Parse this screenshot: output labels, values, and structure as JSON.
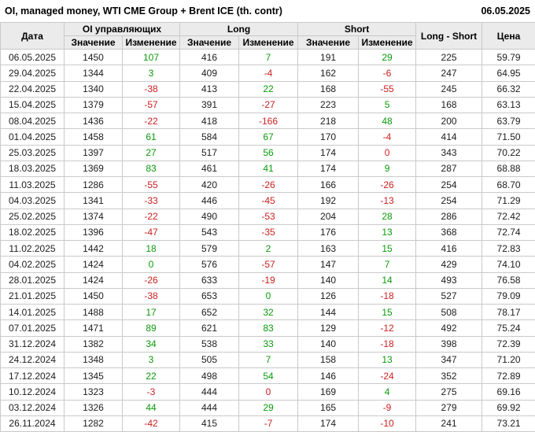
{
  "chart_data": {
    "type": "table",
    "title": "OI, managed money, WTI CME Group + Brent ICE (th. contr)",
    "report_date": "06.05.2025",
    "colors": {
      "positive_change": "#0b9b0b",
      "negative_change": "#cc2020",
      "header_background": "#ebebeb",
      "grid_border": "#c9c9c9"
    },
    "headers": {
      "date": "Дата",
      "oi_group": "OI управляющих",
      "long_group": "Long",
      "short_group": "Short",
      "value": "Значение",
      "change": "Изменение",
      "long_short": "Long - Short",
      "price": "Цена"
    },
    "col_defs": [
      {
        "key": "date"
      },
      {
        "key": "oi"
      },
      {
        "key": "oi_chg",
        "dir": "oi_dir"
      },
      {
        "key": "long"
      },
      {
        "key": "long_chg",
        "dir": "long_dir"
      },
      {
        "key": "short"
      },
      {
        "key": "short_chg",
        "dir": "short_dir"
      },
      {
        "key": "ls"
      },
      {
        "key": "price"
      }
    ],
    "rows": [
      {
        "date": "06.05.2025",
        "oi": "1450",
        "oi_chg": "107",
        "oi_dir": "up",
        "long": "416",
        "long_chg": "7",
        "long_dir": "up",
        "short": "191",
        "short_chg": "29",
        "short_dir": "up",
        "ls": "225",
        "price": "59.79"
      },
      {
        "date": "29.04.2025",
        "oi": "1344",
        "oi_chg": "3",
        "oi_dir": "up",
        "long": "409",
        "long_chg": "-4",
        "long_dir": "down",
        "short": "162",
        "short_chg": "-6",
        "short_dir": "down",
        "ls": "247",
        "price": "64.95"
      },
      {
        "date": "22.04.2025",
        "oi": "1340",
        "oi_chg": "-38",
        "oi_dir": "down",
        "long": "413",
        "long_chg": "22",
        "long_dir": "up",
        "short": "168",
        "short_chg": "-55",
        "short_dir": "down",
        "ls": "245",
        "price": "66.32"
      },
      {
        "date": "15.04.2025",
        "oi": "1379",
        "oi_chg": "-57",
        "oi_dir": "down",
        "long": "391",
        "long_chg": "-27",
        "long_dir": "down",
        "short": "223",
        "short_chg": "5",
        "short_dir": "up",
        "ls": "168",
        "price": "63.13"
      },
      {
        "date": "08.04.2025",
        "oi": "1436",
        "oi_chg": "-22",
        "oi_dir": "down",
        "long": "418",
        "long_chg": "-166",
        "long_dir": "down",
        "short": "218",
        "short_chg": "48",
        "short_dir": "up",
        "ls": "200",
        "price": "63.79"
      },
      {
        "date": "01.04.2025",
        "oi": "1458",
        "oi_chg": "61",
        "oi_dir": "up",
        "long": "584",
        "long_chg": "67",
        "long_dir": "up",
        "short": "170",
        "short_chg": "-4",
        "short_dir": "down",
        "ls": "414",
        "price": "71.50"
      },
      {
        "date": "25.03.2025",
        "oi": "1397",
        "oi_chg": "27",
        "oi_dir": "up",
        "long": "517",
        "long_chg": "56",
        "long_dir": "up",
        "short": "174",
        "short_chg": "0",
        "short_dir": "down",
        "ls": "343",
        "price": "70.22"
      },
      {
        "date": "18.03.2025",
        "oi": "1369",
        "oi_chg": "83",
        "oi_dir": "up",
        "long": "461",
        "long_chg": "41",
        "long_dir": "up",
        "short": "174",
        "short_chg": "9",
        "short_dir": "up",
        "ls": "287",
        "price": "68.88"
      },
      {
        "date": "11.03.2025",
        "oi": "1286",
        "oi_chg": "-55",
        "oi_dir": "down",
        "long": "420",
        "long_chg": "-26",
        "long_dir": "down",
        "short": "166",
        "short_chg": "-26",
        "short_dir": "down",
        "ls": "254",
        "price": "68.70"
      },
      {
        "date": "04.03.2025",
        "oi": "1341",
        "oi_chg": "-33",
        "oi_dir": "down",
        "long": "446",
        "long_chg": "-45",
        "long_dir": "down",
        "short": "192",
        "short_chg": "-13",
        "short_dir": "down",
        "ls": "254",
        "price": "71.29"
      },
      {
        "date": "25.02.2025",
        "oi": "1374",
        "oi_chg": "-22",
        "oi_dir": "down",
        "long": "490",
        "long_chg": "-53",
        "long_dir": "down",
        "short": "204",
        "short_chg": "28",
        "short_dir": "up",
        "ls": "286",
        "price": "72.42"
      },
      {
        "date": "18.02.2025",
        "oi": "1396",
        "oi_chg": "-47",
        "oi_dir": "down",
        "long": "543",
        "long_chg": "-35",
        "long_dir": "down",
        "short": "176",
        "short_chg": "13",
        "short_dir": "up",
        "ls": "368",
        "price": "72.74"
      },
      {
        "date": "11.02.2025",
        "oi": "1442",
        "oi_chg": "18",
        "oi_dir": "up",
        "long": "579",
        "long_chg": "2",
        "long_dir": "up",
        "short": "163",
        "short_chg": "15",
        "short_dir": "up",
        "ls": "416",
        "price": "72.83"
      },
      {
        "date": "04.02.2025",
        "oi": "1424",
        "oi_chg": "0",
        "oi_dir": "up",
        "long": "576",
        "long_chg": "-57",
        "long_dir": "down",
        "short": "147",
        "short_chg": "7",
        "short_dir": "up",
        "ls": "429",
        "price": "74.10"
      },
      {
        "date": "28.01.2025",
        "oi": "1424",
        "oi_chg": "-26",
        "oi_dir": "down",
        "long": "633",
        "long_chg": "-19",
        "long_dir": "down",
        "short": "140",
        "short_chg": "14",
        "short_dir": "up",
        "ls": "493",
        "price": "76.58"
      },
      {
        "date": "21.01.2025",
        "oi": "1450",
        "oi_chg": "-38",
        "oi_dir": "down",
        "long": "653",
        "long_chg": "0",
        "long_dir": "up",
        "short": "126",
        "short_chg": "-18",
        "short_dir": "down",
        "ls": "527",
        "price": "79.09"
      },
      {
        "date": "14.01.2025",
        "oi": "1488",
        "oi_chg": "17",
        "oi_dir": "up",
        "long": "652",
        "long_chg": "32",
        "long_dir": "up",
        "short": "144",
        "short_chg": "15",
        "short_dir": "up",
        "ls": "508",
        "price": "78.17"
      },
      {
        "date": "07.01.2025",
        "oi": "1471",
        "oi_chg": "89",
        "oi_dir": "up",
        "long": "621",
        "long_chg": "83",
        "long_dir": "up",
        "short": "129",
        "short_chg": "-12",
        "short_dir": "down",
        "ls": "492",
        "price": "75.24"
      },
      {
        "date": "31.12.2024",
        "oi": "1382",
        "oi_chg": "34",
        "oi_dir": "up",
        "long": "538",
        "long_chg": "33",
        "long_dir": "up",
        "short": "140",
        "short_chg": "-18",
        "short_dir": "down",
        "ls": "398",
        "price": "72.39"
      },
      {
        "date": "24.12.2024",
        "oi": "1348",
        "oi_chg": "3",
        "oi_dir": "up",
        "long": "505",
        "long_chg": "7",
        "long_dir": "up",
        "short": "158",
        "short_chg": "13",
        "short_dir": "up",
        "ls": "347",
        "price": "71.20"
      },
      {
        "date": "17.12.2024",
        "oi": "1345",
        "oi_chg": "22",
        "oi_dir": "up",
        "long": "498",
        "long_chg": "54",
        "long_dir": "up",
        "short": "146",
        "short_chg": "-24",
        "short_dir": "down",
        "ls": "352",
        "price": "72.89"
      },
      {
        "date": "10.12.2024",
        "oi": "1323",
        "oi_chg": "-3",
        "oi_dir": "down",
        "long": "444",
        "long_chg": "0",
        "long_dir": "down",
        "short": "169",
        "short_chg": "4",
        "short_dir": "up",
        "ls": "275",
        "price": "69.16"
      },
      {
        "date": "03.12.2024",
        "oi": "1326",
        "oi_chg": "44",
        "oi_dir": "up",
        "long": "444",
        "long_chg": "29",
        "long_dir": "up",
        "short": "165",
        "short_chg": "-9",
        "short_dir": "down",
        "ls": "279",
        "price": "69.92"
      },
      {
        "date": "26.11.2024",
        "oi": "1282",
        "oi_chg": "-42",
        "oi_dir": "down",
        "long": "415",
        "long_chg": "-7",
        "long_dir": "down",
        "short": "174",
        "short_chg": "-10",
        "short_dir": "down",
        "ls": "241",
        "price": "73.21"
      }
    ]
  }
}
